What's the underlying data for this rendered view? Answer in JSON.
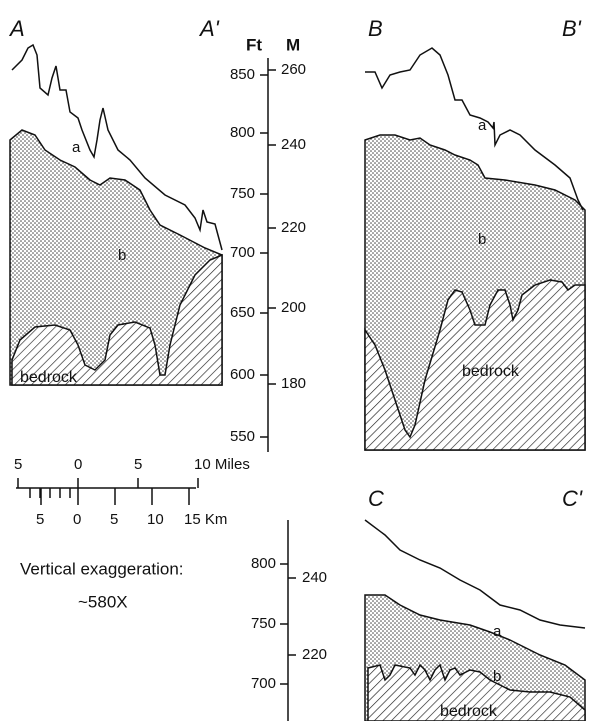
{
  "sections": [
    {
      "left": "A",
      "right": "A'",
      "labels": [
        "a",
        "b",
        "bedrock"
      ]
    },
    {
      "left": "B",
      "right": "B'",
      "labels": [
        "a",
        "b",
        "bedrock"
      ]
    },
    {
      "left": "C",
      "right": "C'",
      "labels": [
        "a",
        "b",
        "bedrock"
      ]
    }
  ],
  "scale_upper": {
    "feet_title": "Ft",
    "meters_title": "M",
    "feet": [
      "850",
      "800",
      "750",
      "700",
      "650",
      "600",
      "550"
    ],
    "meters": [
      "260",
      "240",
      "220",
      "200",
      "180"
    ]
  },
  "scale_lower": {
    "feet": [
      "800",
      "750",
      "700"
    ],
    "meters": [
      "240",
      "220"
    ]
  },
  "distance_scale": {
    "miles": [
      "5",
      "0",
      "5",
      "10 Miles"
    ],
    "km": [
      "5",
      "0",
      "5",
      "10",
      "15 Km"
    ]
  },
  "exaggeration": {
    "label": "Vertical exaggeration:",
    "value": "~580X"
  }
}
